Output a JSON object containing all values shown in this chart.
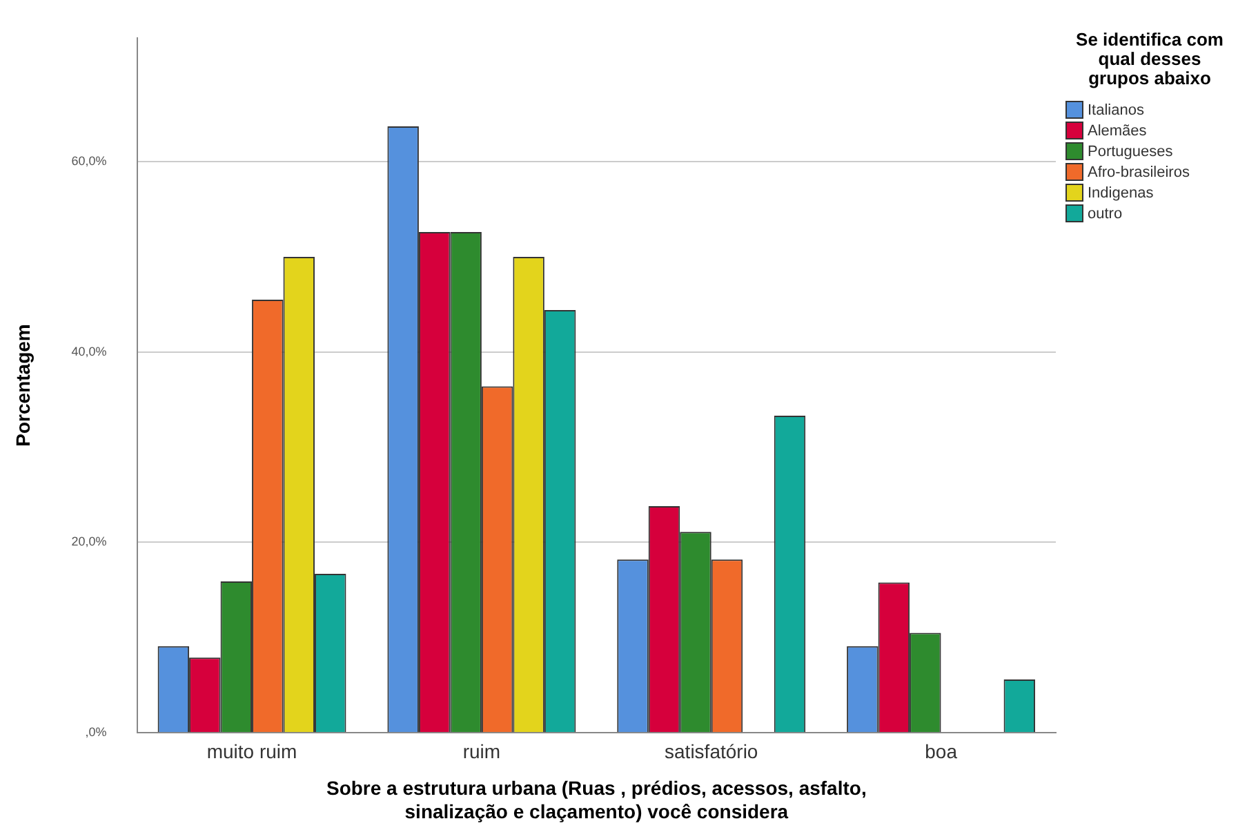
{
  "chart_data": {
    "type": "bar",
    "xlabel": "Sobre a estrutura urbana (Ruas , prédios, acessos, asfalto,\nsinalização e claçamento) você considera",
    "ylabel": "Porcentagem",
    "legend_title": "Se identifica com qual desses grupos abaixo",
    "categories": [
      "muito ruim",
      "ruim",
      "satisfatório",
      "boa"
    ],
    "series": [
      {
        "name": "Italianos",
        "color": "#5591dd",
        "values": [
          9.1,
          63.7,
          18.2,
          9.1
        ]
      },
      {
        "name": "Alemães",
        "color": "#d6003c",
        "values": [
          7.9,
          52.6,
          23.8,
          15.8
        ]
      },
      {
        "name": "Portugueses",
        "color": "#2e8b2e",
        "values": [
          15.9,
          52.6,
          21.1,
          10.5
        ]
      },
      {
        "name": "Afro-brasileiros",
        "color": "#f06a2a",
        "values": [
          45.5,
          36.4,
          18.2,
          0
        ]
      },
      {
        "name": "Indigenas",
        "color": "#e3d41c",
        "values": [
          50,
          50,
          0,
          0
        ]
      },
      {
        "name": "outro",
        "color": "#12a99a",
        "values": [
          16.7,
          44.4,
          33.3,
          5.6
        ]
      }
    ],
    "ylim": [
      0,
      73
    ],
    "yticks": [
      {
        "value": 0,
        "label": ",0%"
      },
      {
        "value": 20,
        "label": "20,0%"
      },
      {
        "value": 40,
        "label": "40,0%"
      },
      {
        "value": 60,
        "label": "60,0%"
      }
    ],
    "grid": "y",
    "legend": "right"
  }
}
